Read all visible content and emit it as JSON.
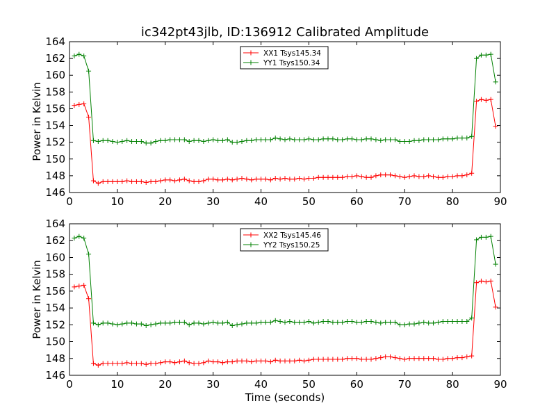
{
  "figure": {
    "title": "ic342pt43jlb, ID:136912 Calibrated Amplitude"
  },
  "chart_data": [
    {
      "type": "line",
      "xlabel": "",
      "ylabel": "Power in Kelvin",
      "xlim": [
        0,
        90
      ],
      "ylim": [
        146,
        164
      ],
      "xticks": [
        0,
        10,
        20,
        30,
        40,
        50,
        60,
        70,
        80,
        90
      ],
      "yticks": [
        146,
        148,
        150,
        152,
        154,
        156,
        158,
        160,
        162,
        164
      ],
      "grid": false,
      "legend_position": "top-center",
      "x": [
        1,
        2,
        3,
        4,
        5,
        6,
        7,
        8,
        9,
        10,
        11,
        12,
        13,
        14,
        15,
        16,
        17,
        18,
        19,
        20,
        21,
        22,
        23,
        24,
        25,
        26,
        27,
        28,
        29,
        30,
        31,
        32,
        33,
        34,
        35,
        36,
        37,
        38,
        39,
        40,
        41,
        42,
        43,
        44,
        45,
        46,
        47,
        48,
        49,
        50,
        51,
        52,
        53,
        54,
        55,
        56,
        57,
        58,
        59,
        60,
        61,
        62,
        63,
        64,
        65,
        66,
        67,
        68,
        69,
        70,
        71,
        72,
        73,
        74,
        75,
        76,
        77,
        78,
        79,
        80,
        81,
        82,
        83,
        84,
        85,
        86,
        87,
        88,
        89
      ],
      "series": [
        {
          "name": "XX1 Tsys145.34",
          "color": "#ff0000",
          "values": [
            156.4,
            156.5,
            156.6,
            155.0,
            147.4,
            147.1,
            147.3,
            147.3,
            147.3,
            147.3,
            147.3,
            147.4,
            147.3,
            147.3,
            147.3,
            147.2,
            147.3,
            147.3,
            147.4,
            147.5,
            147.5,
            147.4,
            147.5,
            147.6,
            147.4,
            147.3,
            147.3,
            147.4,
            147.6,
            147.6,
            147.5,
            147.5,
            147.6,
            147.5,
            147.6,
            147.7,
            147.6,
            147.5,
            147.6,
            147.6,
            147.6,
            147.5,
            147.7,
            147.6,
            147.7,
            147.6,
            147.6,
            147.7,
            147.6,
            147.7,
            147.7,
            147.8,
            147.8,
            147.8,
            147.8,
            147.8,
            147.8,
            147.9,
            147.9,
            148.0,
            147.9,
            147.8,
            147.8,
            148.0,
            148.1,
            148.1,
            148.1,
            148.0,
            147.9,
            147.8,
            147.9,
            148.0,
            147.9,
            147.9,
            148.0,
            147.9,
            147.8,
            147.8,
            147.9,
            147.9,
            148.0,
            148.0,
            148.1,
            148.3,
            156.9,
            157.1,
            157.0,
            157.1,
            153.9
          ]
        },
        {
          "name": "YY1 Tsys150.34",
          "color": "#008000",
          "values": [
            162.3,
            162.5,
            162.3,
            160.5,
            152.2,
            152.1,
            152.2,
            152.2,
            152.1,
            152.0,
            152.1,
            152.2,
            152.1,
            152.1,
            152.1,
            151.9,
            151.9,
            152.1,
            152.2,
            152.2,
            152.3,
            152.3,
            152.3,
            152.3,
            152.1,
            152.2,
            152.2,
            152.1,
            152.2,
            152.3,
            152.2,
            152.2,
            152.3,
            152.0,
            152.0,
            152.1,
            152.2,
            152.2,
            152.3,
            152.3,
            152.3,
            152.3,
            152.5,
            152.4,
            152.3,
            152.4,
            152.3,
            152.3,
            152.3,
            152.4,
            152.3,
            152.3,
            152.4,
            152.4,
            152.4,
            152.3,
            152.3,
            152.4,
            152.4,
            152.3,
            152.3,
            152.4,
            152.4,
            152.3,
            152.2,
            152.3,
            152.3,
            152.3,
            152.1,
            152.1,
            152.1,
            152.2,
            152.2,
            152.3,
            152.3,
            152.3,
            152.3,
            152.4,
            152.4,
            152.4,
            152.5,
            152.5,
            152.5,
            152.7,
            162.0,
            162.4,
            162.4,
            162.5,
            159.2
          ]
        }
      ]
    },
    {
      "type": "line",
      "xlabel": "Time (seconds)",
      "ylabel": "Power in Kelvin",
      "xlim": [
        0,
        90
      ],
      "ylim": [
        146,
        164
      ],
      "xticks": [
        0,
        10,
        20,
        30,
        40,
        50,
        60,
        70,
        80,
        90
      ],
      "yticks": [
        146,
        148,
        150,
        152,
        154,
        156,
        158,
        160,
        162,
        164
      ],
      "grid": false,
      "legend_position": "top-center",
      "x": [
        1,
        2,
        3,
        4,
        5,
        6,
        7,
        8,
        9,
        10,
        11,
        12,
        13,
        14,
        15,
        16,
        17,
        18,
        19,
        20,
        21,
        22,
        23,
        24,
        25,
        26,
        27,
        28,
        29,
        30,
        31,
        32,
        33,
        34,
        35,
        36,
        37,
        38,
        39,
        40,
        41,
        42,
        43,
        44,
        45,
        46,
        47,
        48,
        49,
        50,
        51,
        52,
        53,
        54,
        55,
        56,
        57,
        58,
        59,
        60,
        61,
        62,
        63,
        64,
        65,
        66,
        67,
        68,
        69,
        70,
        71,
        72,
        73,
        74,
        75,
        76,
        77,
        78,
        79,
        80,
        81,
        82,
        83,
        84,
        85,
        86,
        87,
        88,
        89
      ],
      "series": [
        {
          "name": "XX2 Tsys145.46",
          "color": "#ff0000",
          "values": [
            156.5,
            156.6,
            156.7,
            155.1,
            147.4,
            147.2,
            147.4,
            147.4,
            147.4,
            147.4,
            147.4,
            147.5,
            147.4,
            147.4,
            147.4,
            147.3,
            147.4,
            147.4,
            147.5,
            147.6,
            147.6,
            147.5,
            147.6,
            147.7,
            147.5,
            147.4,
            147.4,
            147.5,
            147.7,
            147.6,
            147.6,
            147.5,
            147.6,
            147.6,
            147.7,
            147.7,
            147.7,
            147.6,
            147.7,
            147.7,
            147.7,
            147.6,
            147.8,
            147.7,
            147.7,
            147.7,
            147.7,
            147.8,
            147.7,
            147.8,
            147.9,
            147.9,
            147.9,
            147.9,
            147.9,
            147.9,
            147.9,
            148.0,
            148.0,
            148.0,
            147.9,
            147.9,
            147.9,
            148.0,
            148.1,
            148.2,
            148.2,
            148.1,
            148.0,
            147.9,
            148.0,
            148.0,
            148.0,
            148.0,
            148.0,
            148.0,
            147.9,
            147.9,
            148.0,
            148.0,
            148.1,
            148.1,
            148.2,
            148.3,
            157.0,
            157.2,
            157.1,
            157.2,
            154.1
          ]
        },
        {
          "name": "YY2 Tsys150.25",
          "color": "#008000",
          "values": [
            162.3,
            162.5,
            162.3,
            160.4,
            152.2,
            152.0,
            152.2,
            152.2,
            152.1,
            152.0,
            152.1,
            152.2,
            152.2,
            152.1,
            152.1,
            151.9,
            152.0,
            152.1,
            152.2,
            152.2,
            152.2,
            152.3,
            152.3,
            152.3,
            152.0,
            152.2,
            152.2,
            152.1,
            152.2,
            152.3,
            152.2,
            152.2,
            152.3,
            151.9,
            152.0,
            152.1,
            152.2,
            152.2,
            152.2,
            152.3,
            152.3,
            152.3,
            152.5,
            152.4,
            152.3,
            152.4,
            152.3,
            152.3,
            152.3,
            152.4,
            152.2,
            152.3,
            152.4,
            152.4,
            152.3,
            152.3,
            152.3,
            152.4,
            152.4,
            152.3,
            152.3,
            152.4,
            152.4,
            152.3,
            152.2,
            152.3,
            152.3,
            152.3,
            152.0,
            152.0,
            152.1,
            152.1,
            152.2,
            152.3,
            152.2,
            152.2,
            152.3,
            152.4,
            152.4,
            152.4,
            152.4,
            152.4,
            152.4,
            152.8,
            162.1,
            162.4,
            162.4,
            162.5,
            159.2
          ]
        }
      ]
    }
  ]
}
